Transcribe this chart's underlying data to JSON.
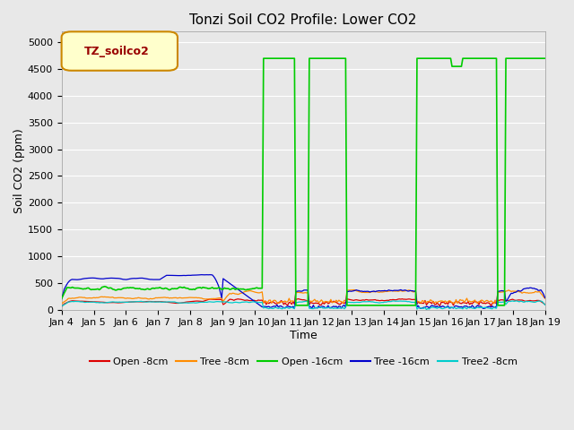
{
  "title": "Tonzi Soil CO2 Profile: Lower CO2",
  "xlabel": "Time",
  "ylabel": "Soil CO2 (ppm)",
  "ylim": [
    0,
    5200
  ],
  "yticks": [
    0,
    500,
    1000,
    1500,
    2000,
    2500,
    3000,
    3500,
    4000,
    4500,
    5000
  ],
  "fig_bg": "#e8e8e8",
  "plot_bg": "#e8e8e8",
  "grid_color": "#ffffff",
  "legend_label": "TZ_soilco2",
  "series": {
    "open_8cm": {
      "label": "Open -8cm",
      "color": "#dd0000"
    },
    "tree_8cm": {
      "label": "Tree -8cm",
      "color": "#ff8c00"
    },
    "open_16cm": {
      "label": "Open -16cm",
      "color": "#00cc00"
    },
    "tree_16cm": {
      "label": "Tree -16cm",
      "color": "#0000cc"
    },
    "tree2_8cm": {
      "label": "Tree2 -8cm",
      "color": "#00cccc"
    }
  },
  "tick_labels": [
    "Jan 4",
    "Jan 5",
    "Jan 6",
    "Jan 7",
    "Jan 8",
    "Jan 9",
    "Jan 10",
    "Jan 11",
    "Jan 12",
    "Jan 13",
    "Jan 14",
    "Jan 15",
    "Jan 16",
    "Jan 17",
    "Jan 18",
    "Jan 19"
  ],
  "title_fontsize": 11,
  "axis_label_fontsize": 9,
  "tick_fontsize": 8,
  "legend_fontsize": 8
}
